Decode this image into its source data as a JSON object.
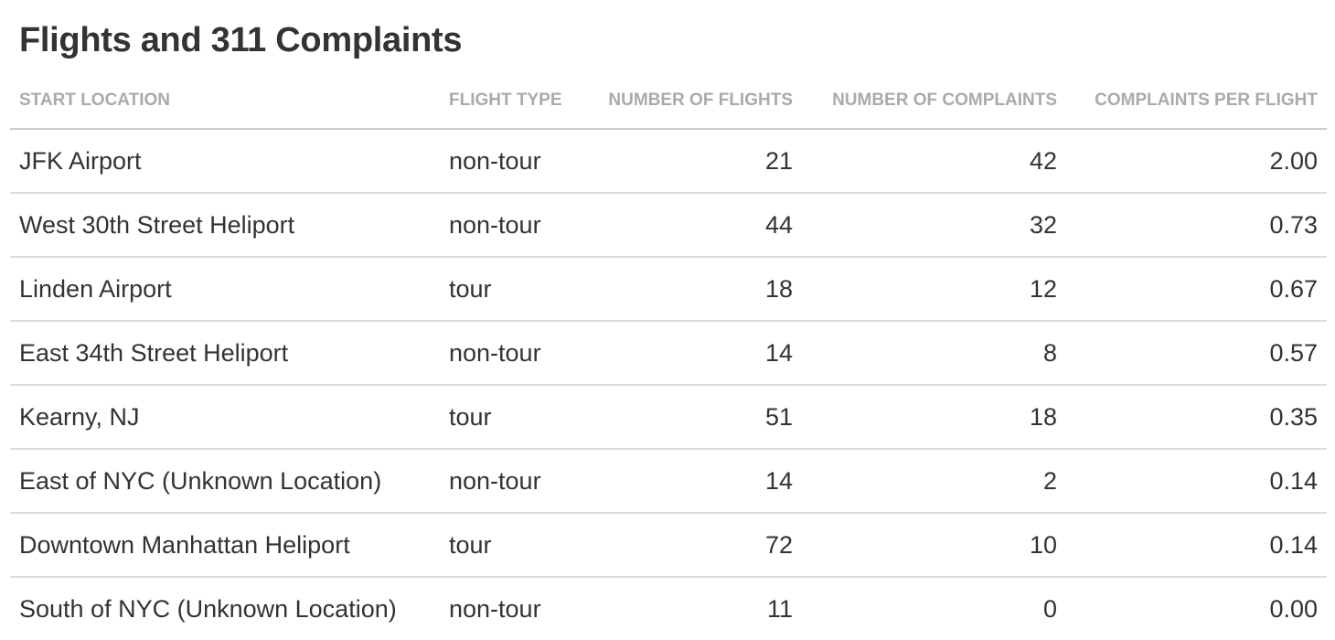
{
  "title": "Flights and 311 Complaints",
  "columns": [
    "START LOCATION",
    "FLIGHT TYPE",
    "NUMBER OF FLIGHTS",
    "NUMBER OF COMPLAINTS",
    "COMPLAINTS PER FLIGHT"
  ],
  "rows": [
    {
      "start_location": "JFK Airport",
      "flight_type": "non-tour",
      "flights": "21",
      "complaints": "42",
      "per_flight": "2.00"
    },
    {
      "start_location": "West 30th Street Heliport",
      "flight_type": "non-tour",
      "flights": "44",
      "complaints": "32",
      "per_flight": "0.73"
    },
    {
      "start_location": "Linden Airport",
      "flight_type": "tour",
      "flights": "18",
      "complaints": "12",
      "per_flight": "0.67"
    },
    {
      "start_location": "East 34th Street Heliport",
      "flight_type": "non-tour",
      "flights": "14",
      "complaints": "8",
      "per_flight": "0.57"
    },
    {
      "start_location": "Kearny, NJ",
      "flight_type": "tour",
      "flights": "51",
      "complaints": "18",
      "per_flight": "0.35"
    },
    {
      "start_location": "East of NYC (Unknown Location)",
      "flight_type": "non-tour",
      "flights": "14",
      "complaints": "2",
      "per_flight": "0.14"
    },
    {
      "start_location": "Downtown Manhattan Heliport",
      "flight_type": "tour",
      "flights": "72",
      "complaints": "10",
      "per_flight": "0.14"
    },
    {
      "start_location": "South of NYC (Unknown Location)",
      "flight_type": "non-tour",
      "flights": "11",
      "complaints": "0",
      "per_flight": "0.00"
    }
  ],
  "colors": {
    "text": "#333333",
    "header_text": "#aaaaaa",
    "rule": "#dddddd"
  }
}
